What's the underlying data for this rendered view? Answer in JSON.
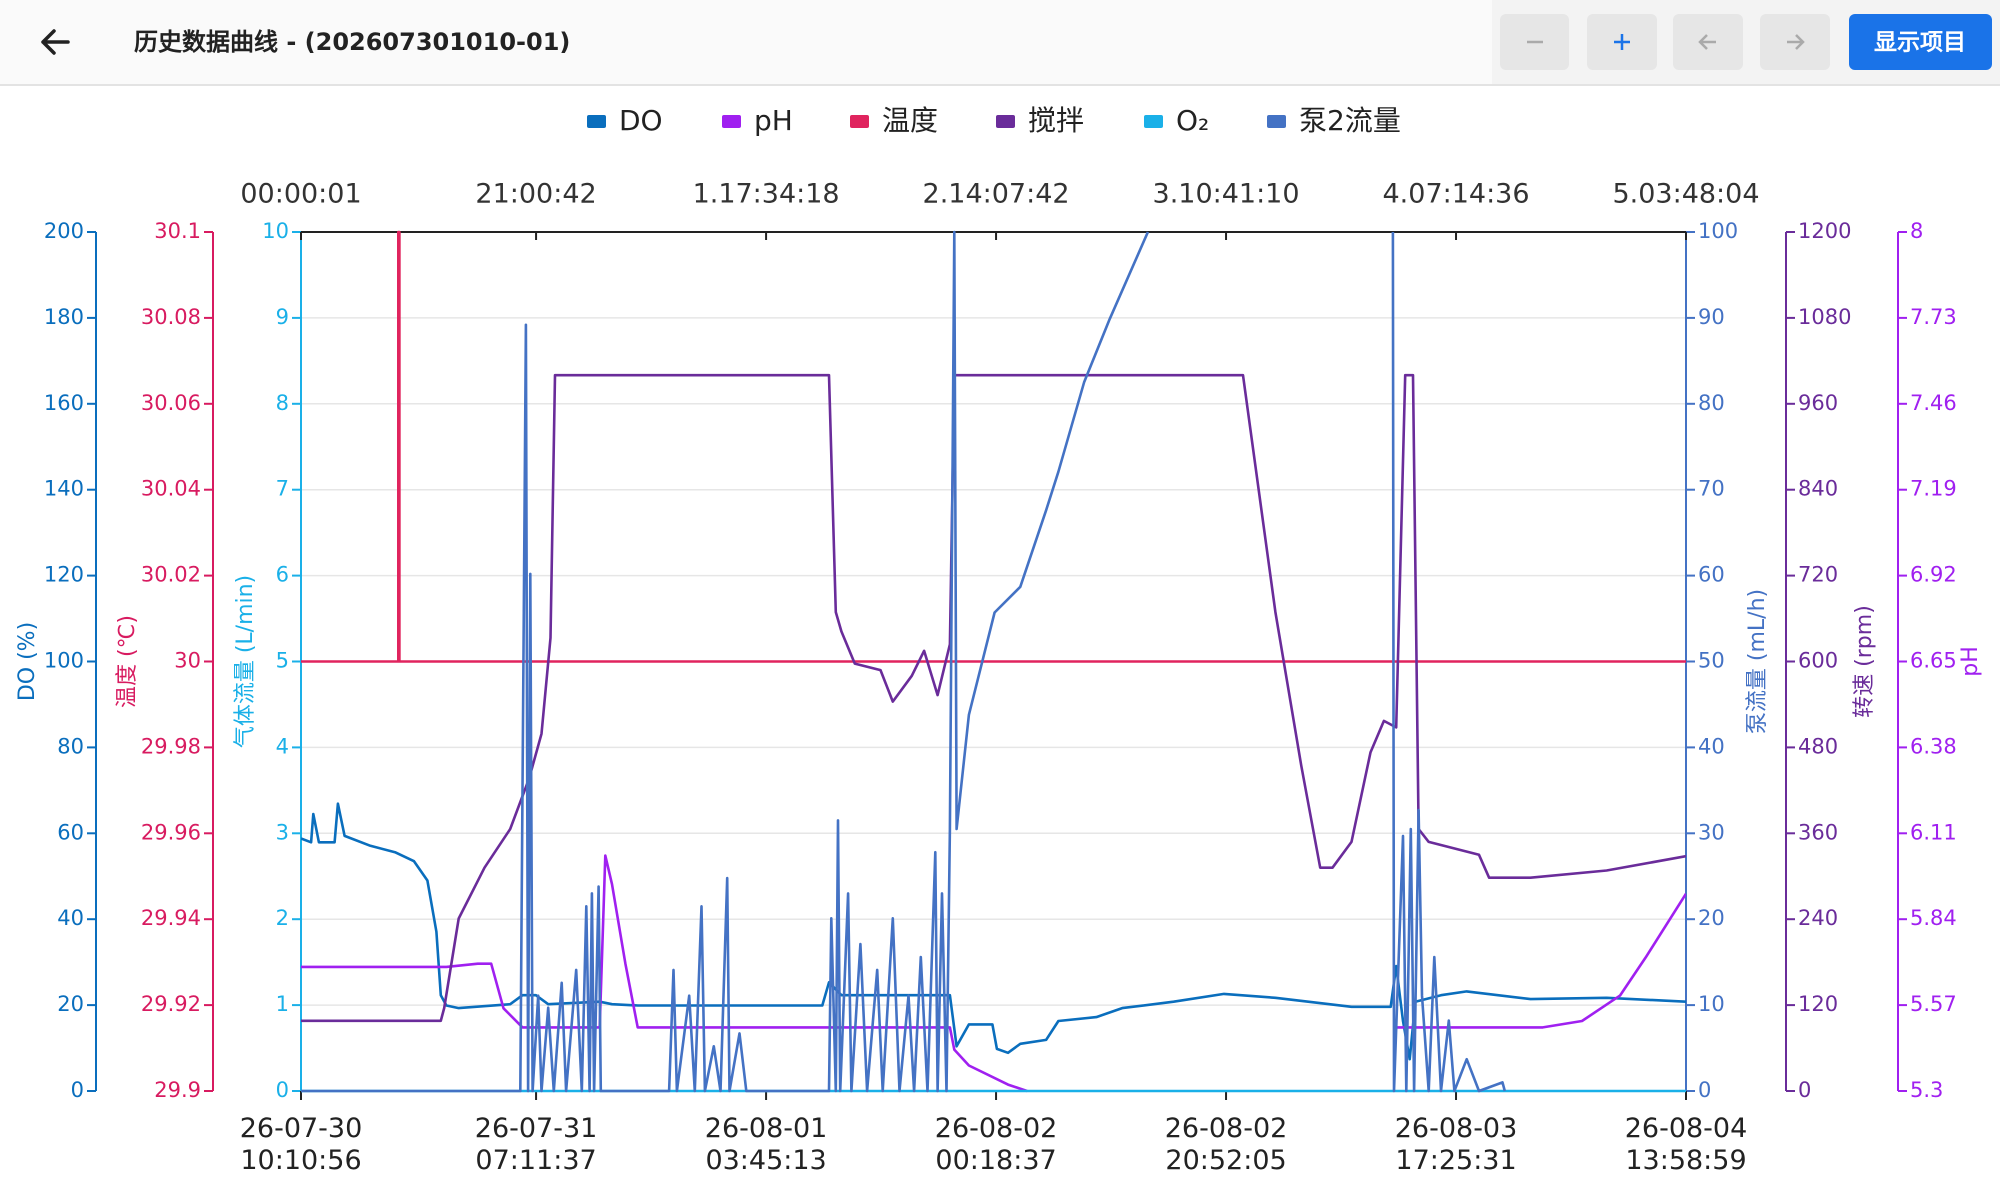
{
  "header": {
    "title": "历史数据曲线 - (202607301010-01)",
    "action": "显示项目"
  },
  "chart_data": {
    "type": "line",
    "xlim": [
      0,
      123.8
    ],
    "x2ticks": [
      {
        "value": 0.0003,
        "label": "00:00:01"
      },
      {
        "value": 21.0117,
        "label": "21:00:42"
      },
      {
        "value": 41.5717,
        "label": "1.17:34:18"
      },
      {
        "value": 62.1283,
        "label": "2.14:07:42"
      },
      {
        "value": 82.6861,
        "label": "3.10:41:10"
      },
      {
        "value": 103.2433,
        "label": "4.07:14:36"
      },
      {
        "value": 123.8011,
        "label": "5.03:48:04"
      }
    ],
    "xticks": [
      {
        "value": 0.0003,
        "label": "26-07-30\n10:10:56"
      },
      {
        "value": 21.0117,
        "label": "26-07-31\n07:11:37"
      },
      {
        "value": 41.5717,
        "label": "26-08-01\n03:45:13"
      },
      {
        "value": 62.1283,
        "label": "26-08-02\n00:18:37"
      },
      {
        "value": 82.6861,
        "label": "26-08-02\n20:52:05"
      },
      {
        "value": 103.2433,
        "label": "26-08-03\n17:25:31"
      },
      {
        "value": 123.8011,
        "label": "26-08-04\n13:58:59"
      }
    ],
    "grid": true,
    "axes": {
      "y": {
        "label": "DO (%)",
        "color": "#0a6ebd",
        "ylim": [
          0,
          200
        ],
        "yticks": [
          0,
          20,
          40,
          60,
          80,
          100,
          120,
          140,
          160,
          180,
          200
        ]
      },
      "y2": {
        "label": "温度 (℃)",
        "color": "#d81b60",
        "ylim": [
          29.9,
          30.1
        ],
        "yticks": [
          29.9,
          29.92,
          29.94,
          29.96,
          29.98,
          30,
          30.02,
          30.04,
          30.06,
          30.08,
          30.1
        ]
      },
      "y3": {
        "label": "气体流量 (L/min)",
        "color": "#1ab0e8",
        "ylim": [
          0,
          10
        ],
        "yticks": [
          0,
          1,
          2,
          3,
          4,
          5,
          6,
          7,
          8,
          9,
          10
        ]
      },
      "y4": {
        "label": "泵流量 (mL/h)",
        "color": "#4472c4",
        "ylim": [
          0,
          100
        ],
        "yticks": [
          0,
          10,
          20,
          30,
          40,
          50,
          60,
          70,
          80,
          90,
          100
        ]
      },
      "y5": {
        "label": "转速 (rpm)",
        "color": "#6a2c9a",
        "ylim": [
          0,
          1200
        ],
        "yticks": [
          0,
          120,
          240,
          360,
          480,
          600,
          720,
          840,
          960,
          1080,
          1200
        ]
      },
      "y6": {
        "label": "pH",
        "color": "#a020f0",
        "ylim": [
          5.3,
          8
        ],
        "yticks": [
          5.3,
          5.57,
          5.84,
          6.11,
          6.38,
          6.65,
          6.92,
          7.19,
          7.46,
          7.73,
          8
        ]
      }
    },
    "series": [
      {
        "name": "DO",
        "color": "#0a6ebd",
        "axis": "y",
        "x": [
          0,
          0.9,
          1.1,
          1.6,
          3.0,
          3.3,
          3.9,
          6.2,
          8.4,
          10.1,
          11.3,
          12.1,
          12.5,
          13.0,
          14.1,
          18.7,
          19.8,
          21.0,
          22.1,
          26.7,
          27.8,
          30.1,
          46.6,
          47.2,
          48.3,
          58.0,
          58.6,
          59.7,
          61.8,
          62.2,
          63.2,
          64.3,
          66.6,
          67.7,
          71.1,
          73.4,
          78.0,
          82.5,
          87.1,
          93.9,
          97.4,
          97.9,
          98.5,
          99.1,
          99.6,
          101.9,
          104.2,
          109.9,
          116.7,
          123.8
        ],
        "values": [
          58.8,
          57.9,
          64.5,
          57.9,
          57.9,
          66.9,
          59.4,
          57.1,
          55.6,
          53.5,
          49.0,
          37.1,
          22.3,
          19.9,
          19.3,
          20.2,
          22.3,
          22.3,
          20.2,
          20.8,
          20.2,
          19.9,
          19.9,
          25.3,
          22.3,
          22.3,
          10.4,
          15.5,
          15.5,
          9.8,
          8.9,
          11.0,
          11.9,
          16.3,
          17.2,
          19.3,
          20.8,
          22.6,
          21.7,
          19.6,
          19.6,
          29.1,
          16.3,
          7.4,
          20.8,
          22.3,
          23.2,
          21.4,
          21.7,
          20.8
        ]
      },
      {
        "name": "pH",
        "color": "#a020f0",
        "axis": "y6",
        "x": [
          0,
          13.0,
          15.8,
          17.0,
          18.1,
          19.8,
          26.7,
          27.2,
          27.8,
          29.0,
          30.1,
          58.0,
          58.4,
          59.7,
          63.2,
          64.9,
          86.0,
          97.9,
          111.0,
          114.5,
          117.9,
          120.2,
          123.8
        ],
        "values": [
          5.69,
          5.69,
          5.7,
          5.7,
          5.56,
          5.5,
          5.5,
          6.04,
          5.95,
          5.7,
          5.5,
          5.5,
          5.43,
          5.38,
          5.32,
          5.3,
          null,
          5.5,
          5.5,
          5.52,
          5.6,
          5.72,
          5.92
        ]
      },
      {
        "name": "温度",
        "color": "#e0245e",
        "axis": "y2",
        "x": [
          0,
          8.7,
          8.7,
          8.8,
          8.8,
          123.8
        ],
        "values": [
          30,
          30,
          30.1,
          30.1,
          30,
          30
        ]
      },
      {
        "name": "搅拌",
        "color": "#6a2c9a",
        "axis": "y5",
        "x": [
          0,
          12.5,
          12.8,
          14.1,
          16.4,
          18.7,
          20.4,
          21.5,
          22.3,
          22.7,
          47.2,
          47.8,
          48.3,
          49.5,
          51.8,
          52.9,
          54.6,
          55.7,
          56.9,
          58.0,
          58.4,
          84.2,
          87.1,
          89.4,
          91.1,
          92.2,
          93.9,
          95.6,
          96.8,
          97.9,
          98.7,
          99.4,
          99.9,
          100.8,
          105.3,
          106.2,
          109.9,
          116.7,
          123.8
        ],
        "values": [
          98,
          98,
          116,
          241,
          312,
          366,
          437,
          499,
          633,
          1000,
          1000,
          669,
          642,
          597,
          588,
          544,
          580,
          615,
          553,
          624,
          1000,
          1000,
          669,
          455,
          312,
          312,
          348,
          473,
          517,
          508,
          1000,
          1000,
          366,
          348,
          330,
          298,
          298,
          308,
          328
        ]
      },
      {
        "name": "O₂",
        "color": "#1ab0e8",
        "axis": "y3",
        "x": [
          0,
          123.8
        ],
        "values": [
          0,
          0
        ]
      },
      {
        "name": "泵2流量",
        "color": "#4472c4",
        "axis": "y4",
        "x": [
          0,
          19.6,
          20.1,
          20.3,
          20.5,
          20.7,
          21.2,
          21.5,
          22.1,
          22.6,
          23.3,
          23.7,
          24.6,
          25.1,
          25.5,
          25.8,
          26.0,
          26.2,
          26.6,
          26.8,
          32.9,
          33.3,
          33.6,
          34.7,
          35.2,
          35.8,
          36.1,
          36.9,
          37.5,
          38.1,
          38.3,
          39.2,
          39.8,
          47.2,
          47.4,
          47.8,
          48.0,
          48.2,
          48.9,
          49.2,
          50.0,
          50.6,
          51.5,
          52.0,
          52.9,
          53.5,
          54.3,
          54.8,
          55.4,
          56.0,
          56.7,
          56.9,
          57.3,
          57.7,
          58.0,
          58.4,
          58.6,
          59.7,
          62.0,
          64.3,
          66.6,
          67.7,
          70.0,
          72.3,
          75.7,
          86.0,
          97.6,
          97.7,
          98.5,
          98.8,
          99.2,
          99.5,
          99.9,
          100.2,
          100.8,
          101.3,
          101.9,
          102.6,
          103.1,
          104.2,
          105.3,
          107.4,
          107.6
        ],
        "values": [
          0,
          0,
          89.2,
          0,
          60.2,
          0,
          11.1,
          0,
          9.7,
          0,
          12.6,
          0,
          14.1,
          0,
          21.5,
          0,
          23.0,
          0,
          23.8,
          0,
          0,
          14.1,
          0,
          11.1,
          0,
          21.5,
          0,
          5.2,
          0,
          24.8,
          0,
          6.7,
          0,
          0,
          20.1,
          0,
          31.5,
          0,
          23.0,
          0,
          17.1,
          0,
          14.1,
          0,
          20.1,
          0,
          11.1,
          0,
          15.6,
          0,
          27.8,
          0,
          23.0,
          0,
          30.5,
          100,
          30.5,
          43.8,
          55.7,
          58.7,
          67.6,
          72.1,
          82.5,
          89.9,
          100,
          null,
          100,
          0,
          29.7,
          0,
          30.5,
          0,
          32.7,
          11.1,
          0,
          15.6,
          0,
          8.2,
          0,
          3.7,
          0,
          1.0,
          0
        ]
      }
    ]
  }
}
